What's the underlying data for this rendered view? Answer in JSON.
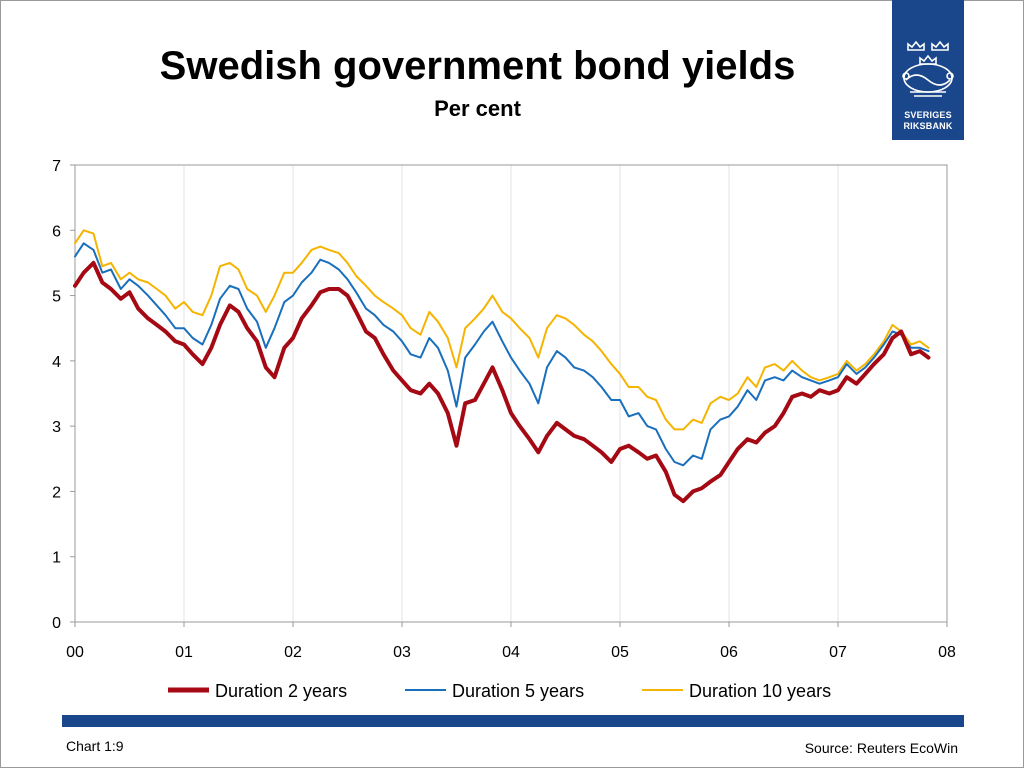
{
  "slide": {
    "title": "Swedish government bond yields",
    "subtitle": "Per cent",
    "chart_number": "Chart 1:9",
    "source": "Source: Reuters EcoWin"
  },
  "logo": {
    "line1": "SVERIGES",
    "line2": "RIKSBANK",
    "color": "#1a468b"
  },
  "chart_data": {
    "type": "line",
    "title": "Swedish government bond yields",
    "subtitle": "Per cent",
    "xlabel": "",
    "ylabel": "",
    "x_ticks": [
      {
        "year": 2000,
        "label": "00"
      },
      {
        "year": 2001,
        "label": "01"
      },
      {
        "year": 2002,
        "label": "02"
      },
      {
        "year": 2003,
        "label": "03"
      },
      {
        "year": 2004,
        "label": "04"
      },
      {
        "year": 2005,
        "label": "05"
      },
      {
        "year": 2006,
        "label": "06"
      },
      {
        "year": 2007,
        "label": "07"
      },
      {
        "year": 2008,
        "label": "08"
      }
    ],
    "y_ticks": [
      "0",
      "1",
      "2",
      "3",
      "4",
      "5",
      "6",
      "7"
    ],
    "xlim": [
      2000,
      2008
    ],
    "ylim": [
      0,
      7
    ],
    "grid": "vertical",
    "legend_position": "bottom",
    "x": [
      2000.0,
      2000.08,
      2000.17,
      2000.25,
      2000.33,
      2000.42,
      2000.5,
      2000.58,
      2000.67,
      2000.75,
      2000.83,
      2000.92,
      2001.0,
      2001.08,
      2001.17,
      2001.25,
      2001.33,
      2001.42,
      2001.5,
      2001.58,
      2001.67,
      2001.75,
      2001.83,
      2001.92,
      2002.0,
      2002.08,
      2002.17,
      2002.25,
      2002.33,
      2002.42,
      2002.5,
      2002.58,
      2002.67,
      2002.75,
      2002.83,
      2002.92,
      2003.0,
      2003.08,
      2003.17,
      2003.25,
      2003.33,
      2003.42,
      2003.5,
      2003.58,
      2003.67,
      2003.75,
      2003.83,
      2003.92,
      2004.0,
      2004.08,
      2004.17,
      2004.25,
      2004.33,
      2004.42,
      2004.5,
      2004.58,
      2004.67,
      2004.75,
      2004.83,
      2004.92,
      2005.0,
      2005.08,
      2005.17,
      2005.25,
      2005.33,
      2005.42,
      2005.5,
      2005.58,
      2005.67,
      2005.75,
      2005.83,
      2005.92,
      2006.0,
      2006.08,
      2006.17,
      2006.25,
      2006.33,
      2006.42,
      2006.5,
      2006.58,
      2006.67,
      2006.75,
      2006.83,
      2006.92,
      2007.0,
      2007.08,
      2007.17,
      2007.25,
      2007.33,
      2007.42,
      2007.5,
      2007.58,
      2007.67,
      2007.75,
      2007.83
    ],
    "series": [
      {
        "name": "Duration 2 years",
        "color": "#a50a14",
        "width": 4,
        "values": [
          5.15,
          5.35,
          5.5,
          5.2,
          5.1,
          4.95,
          5.05,
          4.8,
          4.65,
          4.55,
          4.45,
          4.3,
          4.25,
          4.1,
          3.95,
          4.2,
          4.55,
          4.85,
          4.75,
          4.5,
          4.3,
          3.9,
          3.75,
          4.2,
          4.35,
          4.65,
          4.85,
          5.05,
          5.1,
          5.1,
          5.0,
          4.75,
          4.45,
          4.35,
          4.1,
          3.85,
          3.7,
          3.55,
          3.5,
          3.65,
          3.5,
          3.2,
          2.7,
          3.35,
          3.4,
          3.65,
          3.9,
          3.55,
          3.2,
          3.0,
          2.8,
          2.6,
          2.85,
          3.05,
          2.95,
          2.85,
          2.8,
          2.7,
          2.6,
          2.45,
          2.65,
          2.7,
          2.6,
          2.5,
          2.55,
          2.3,
          1.95,
          1.85,
          2.0,
          2.05,
          2.15,
          2.25,
          2.45,
          2.65,
          2.8,
          2.75,
          2.9,
          3.0,
          3.2,
          3.45,
          3.5,
          3.45,
          3.55,
          3.5,
          3.55,
          3.75,
          3.65,
          3.8,
          3.95,
          4.1,
          4.35,
          4.45,
          4.1,
          4.15,
          4.05
        ]
      },
      {
        "name": "Duration 5 years",
        "color": "#1a6fbc",
        "width": 2,
        "values": [
          5.6,
          5.8,
          5.7,
          5.35,
          5.4,
          5.1,
          5.25,
          5.15,
          5.0,
          4.85,
          4.7,
          4.5,
          4.5,
          4.35,
          4.25,
          4.55,
          4.95,
          5.15,
          5.1,
          4.8,
          4.6,
          4.2,
          4.5,
          4.9,
          5.0,
          5.2,
          5.35,
          5.55,
          5.5,
          5.4,
          5.25,
          5.05,
          4.8,
          4.7,
          4.55,
          4.45,
          4.3,
          4.1,
          4.05,
          4.35,
          4.2,
          3.85,
          3.3,
          4.05,
          4.25,
          4.45,
          4.6,
          4.3,
          4.05,
          3.85,
          3.65,
          3.35,
          3.9,
          4.15,
          4.05,
          3.9,
          3.85,
          3.75,
          3.6,
          3.4,
          3.4,
          3.15,
          3.2,
          3.0,
          2.95,
          2.65,
          2.45,
          2.4,
          2.55,
          2.5,
          2.95,
          3.1,
          3.15,
          3.3,
          3.55,
          3.4,
          3.7,
          3.75,
          3.7,
          3.85,
          3.75,
          3.7,
          3.65,
          3.7,
          3.75,
          3.95,
          3.8,
          3.9,
          4.05,
          4.25,
          4.45,
          4.4,
          4.2,
          4.2,
          4.15
        ]
      },
      {
        "name": "Duration 10 years",
        "color": "#f5b400",
        "width": 2,
        "values": [
          5.8,
          6.0,
          5.95,
          5.45,
          5.5,
          5.25,
          5.35,
          5.25,
          5.2,
          5.1,
          5.0,
          4.8,
          4.9,
          4.75,
          4.7,
          5.0,
          5.45,
          5.5,
          5.4,
          5.1,
          5.0,
          4.75,
          5.0,
          5.35,
          5.35,
          5.5,
          5.7,
          5.75,
          5.7,
          5.65,
          5.5,
          5.3,
          5.15,
          5.0,
          4.9,
          4.8,
          4.7,
          4.5,
          4.4,
          4.75,
          4.6,
          4.35,
          3.9,
          4.5,
          4.65,
          4.8,
          5.0,
          4.75,
          4.65,
          4.5,
          4.35,
          4.05,
          4.5,
          4.7,
          4.65,
          4.55,
          4.4,
          4.3,
          4.15,
          3.95,
          3.8,
          3.6,
          3.6,
          3.45,
          3.4,
          3.1,
          2.95,
          2.95,
          3.1,
          3.05,
          3.35,
          3.45,
          3.4,
          3.5,
          3.75,
          3.6,
          3.9,
          3.95,
          3.85,
          4.0,
          3.85,
          3.75,
          3.7,
          3.75,
          3.8,
          4.0,
          3.85,
          3.95,
          4.1,
          4.3,
          4.55,
          4.45,
          4.25,
          4.3,
          4.2
        ]
      }
    ]
  }
}
